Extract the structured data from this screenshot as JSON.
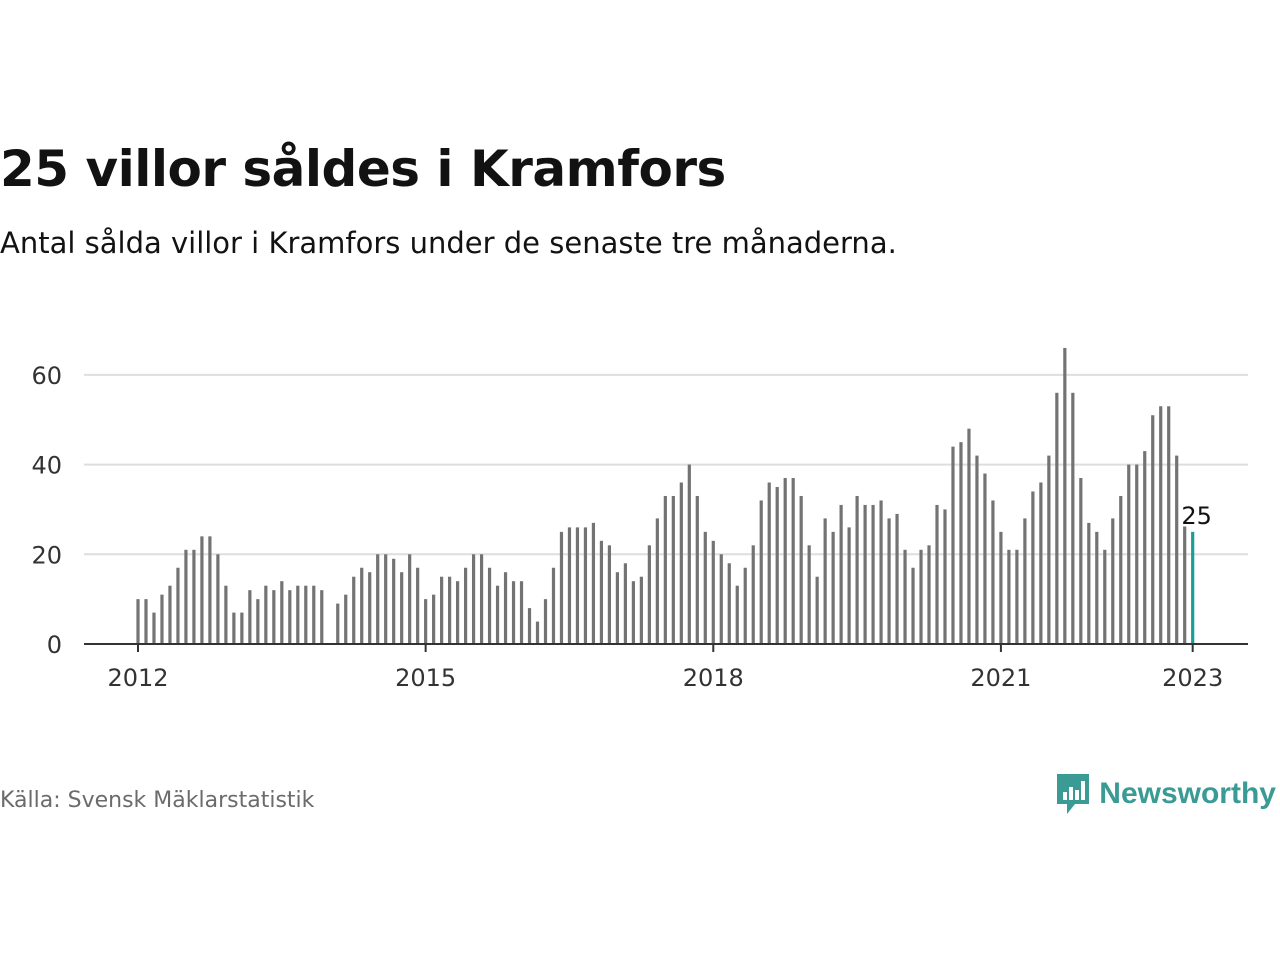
{
  "title": "25 villor såldes i Kramfors",
  "subtitle": "Antal sålda villor i Kramfors under de senaste tre månaderna.",
  "source": "Källa: Svensk Mäklarstatistik",
  "brand": {
    "name": "Newsworthy",
    "icon": "newsworthy-logo-icon",
    "color": "#3a9b94"
  },
  "colors": {
    "bar": "#737373",
    "highlight": "#1a9e96",
    "grid": "#dedede",
    "axis": "#333333"
  },
  "chart_data": {
    "type": "bar",
    "title": "25 villor såldes i Kramfors",
    "subtitle": "Antal sålda villor i Kramfors under de senaste tre månaderna.",
    "xlabel": "",
    "ylabel": "",
    "ylim": [
      0,
      70
    ],
    "yticks": [
      0,
      20,
      40,
      60
    ],
    "xticks": [
      {
        "label": "2012",
        "index": 0
      },
      {
        "label": "2015",
        "index": 36
      },
      {
        "label": "2018",
        "index": 72
      },
      {
        "label": "2021",
        "index": 108
      },
      {
        "label": "2023",
        "index": 132
      }
    ],
    "start": "2012-01",
    "frequency": "monthly",
    "grid": true,
    "legend": "none",
    "highlight_label": "25",
    "values": [
      10,
      10,
      7,
      11,
      13,
      17,
      21,
      21,
      24,
      24,
      20,
      13,
      7,
      7,
      12,
      10,
      13,
      12,
      14,
      12,
      13,
      13,
      13,
      12,
      null,
      9,
      11,
      15,
      17,
      16,
      20,
      20,
      19,
      16,
      20,
      17,
      10,
      11,
      15,
      15,
      14,
      17,
      20,
      20,
      17,
      13,
      16,
      14,
      14,
      8,
      5,
      10,
      17,
      25,
      26,
      26,
      26,
      27,
      23,
      22,
      16,
      18,
      14,
      15,
      22,
      28,
      33,
      33,
      36,
      40,
      33,
      25,
      23,
      20,
      18,
      13,
      17,
      22,
      32,
      36,
      35,
      37,
      37,
      33,
      22,
      15,
      28,
      25,
      31,
      26,
      33,
      31,
      31,
      32,
      28,
      29,
      21,
      17,
      21,
      22,
      31,
      30,
      44,
      45,
      48,
      42,
      38,
      32,
      25,
      21,
      21,
      28,
      34,
      36,
      42,
      56,
      66,
      56,
      37,
      27,
      25,
      21,
      28,
      33,
      40,
      40,
      43,
      51,
      53,
      53,
      42,
      28,
      25
    ]
  }
}
